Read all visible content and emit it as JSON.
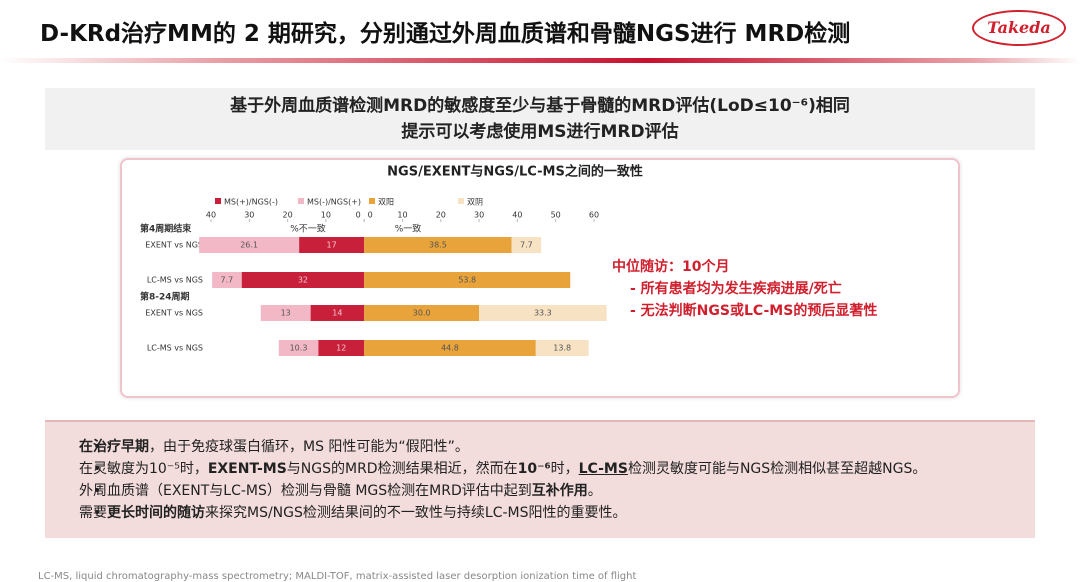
{
  "header": {
    "title": "D-KRd治疗MM的 2 期研究，分别通过外周血质谱和骨髓NGS进行 MRD检测",
    "logo": "Takeda"
  },
  "banner": {
    "lines": [
      "基于外周血质谱检测MRD的敏感度至少与基于骨髓的MRD评估(LoD≤10⁻⁶)相同",
      "提示可以考虑使用MS进行MRD评估"
    ]
  },
  "chart_data": {
    "type": "diverging-bar",
    "title": "NGS/EXENT与NGS/LC-MS之间的一致性",
    "categories": [
      "EXENT vs NGS",
      "LC-MS vs NGS",
      "EXENT vs NGS",
      "LC-MS vs NGS"
    ],
    "groups": [
      "第4周期结束",
      "第8-24周期"
    ],
    "annotations": [
      "%不一致",
      "%一致"
    ],
    "xlim": [
      -40,
      60
    ],
    "xticks": [
      {
        "value": -40,
        "label": "40"
      },
      {
        "value": -30,
        "label": "30"
      },
      {
        "value": -20,
        "label": "20"
      },
      {
        "value": -10,
        "label": "10"
      },
      {
        "value": 0,
        "label": "0"
      },
      0,
      10,
      20,
      30,
      40,
      50,
      60
    ],
    "series": [
      {
        "name": "MS(+)/NGS(-)",
        "color": "#c8203a",
        "values": [
          17,
          32,
          14,
          12
        ]
      },
      {
        "name": "MS(-)/NGS(+)",
        "color": "#f2b8c6",
        "values": [
          26.1,
          7.7,
          13,
          10.3
        ]
      },
      {
        "name": "双阳",
        "color": "#e8a33b",
        "values": [
          38.5,
          53.8,
          30.0,
          44.8
        ],
        "value_labels": [
          "38.5",
          "53.8",
          "30.0",
          "44.8"
        ]
      },
      {
        "name": "双阴",
        "color": "#f8e2c4",
        "values": [
          7.7,
          null,
          33.3,
          13.8
        ]
      }
    ]
  },
  "side": {
    "heading": "中位随访：10个月",
    "items": [
      "- 所有患者均为发生疾病进展/死亡",
      "- 无法判断NGS或LC-MS的预后显著性"
    ]
  },
  "bullets": [
    [
      {
        "text": "在治疗早期",
        "bold": true
      },
      {
        "text": "，由于免疫球蛋白循环，MS 阳性可能为“假阳性”。"
      }
    ],
    [
      {
        "text": "在灵敏度为10⁻⁵时，"
      },
      {
        "text": "EXENT-MS",
        "bold": true
      },
      {
        "text": "与NGS的MRD检测结果相近，然而在"
      },
      {
        "text": "10⁻⁶",
        "bold": true
      },
      {
        "text": "时，"
      },
      {
        "text": "LC-MS",
        "bold": true,
        "underline": true
      },
      {
        "text": "检测灵敏度可能与NGS检测相似甚至超越NGS。"
      }
    ],
    [
      {
        "text": "外周血质谱（EXENT与LC-MS）检测与骨髓 MGS检测在MRD评估中起到"
      },
      {
        "text": "互补作用",
        "bold": true
      },
      {
        "text": "。"
      }
    ],
    [
      {
        "text": "需要"
      },
      {
        "text": "更长时间的随访",
        "bold": true
      },
      {
        "text": "来探究MS/NGS检测结果间的不一致性与持续LC-MS阳性的重要性。"
      }
    ]
  ],
  "footnote": "LC-MS, liquid chromatography-mass spectrometry; MALDI-TOF, matrix-assisted laser desorption ionization time of flight"
}
